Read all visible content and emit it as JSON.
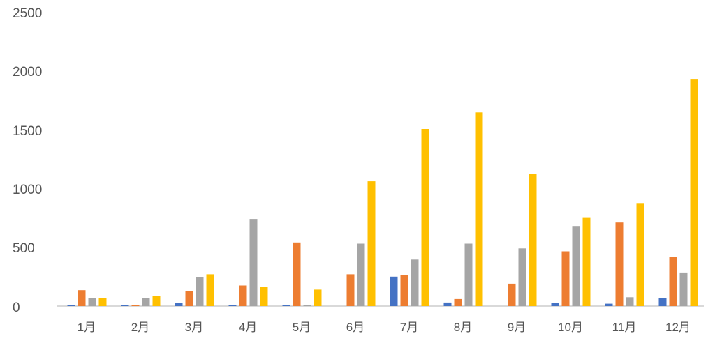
{
  "chart_data": {
    "type": "bar",
    "categories": [
      "1月",
      "2月",
      "3月",
      "4月",
      "5月",
      "6月",
      "7月",
      "8月",
      "9月",
      "10月",
      "11月",
      "12月"
    ],
    "series": [
      {
        "values": [
          12,
          5,
          25,
          12,
          8,
          0,
          250,
          30,
          0,
          25,
          20,
          70
        ],
        "color": "#4472C4"
      },
      {
        "values": [
          135,
          8,
          125,
          175,
          540,
          270,
          265,
          60,
          190,
          465,
          710,
          415
        ],
        "color": "#ED7D31"
      },
      {
        "values": [
          65,
          70,
          245,
          740,
          5,
          530,
          395,
          530,
          490,
          680,
          75,
          285
        ],
        "color": "#A5A5A5"
      },
      {
        "values": [
          65,
          85,
          270,
          165,
          140,
          1060,
          1505,
          1645,
          1125,
          755,
          875,
          1925
        ],
        "color": "#FFC000"
      }
    ],
    "y_ticks": [
      "0",
      "500",
      "1000",
      "1500",
      "2000",
      "2500"
    ],
    "ylim": [
      0,
      2500
    ],
    "grid": false,
    "legend": "none",
    "axis_color": "#D9D9D9"
  }
}
